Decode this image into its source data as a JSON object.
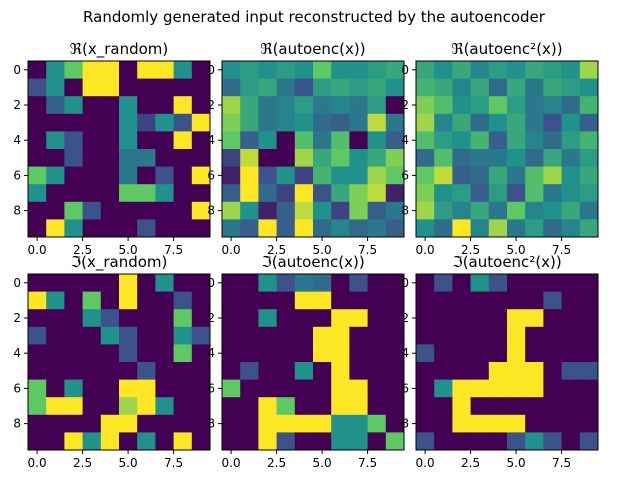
{
  "figure": {
    "suptitle": "Randomly generated input reconstructed by the autoencoder"
  },
  "chart_data": [
    {
      "type": "heatmap",
      "title": "ℜ(x_random)",
      "xlabel": "",
      "ylabel": "",
      "xticks": [
        "0.0",
        "2.5",
        "5.0",
        "7.5"
      ],
      "yticks": [
        "0",
        "2",
        "4",
        "6",
        "8"
      ],
      "colormap": "viridis",
      "values": [
        [
          0.0,
          0.5,
          0.75,
          1.0,
          1.0,
          0.0,
          1.0,
          1.0,
          0.5,
          0.0
        ],
        [
          0.25,
          0.5,
          0.0,
          1.0,
          1.0,
          0.0,
          0.0,
          0.0,
          0.0,
          0.0
        ],
        [
          0.0,
          0.3,
          0.5,
          0.0,
          0.0,
          0.5,
          0.0,
          0.0,
          1.0,
          0.0
        ],
        [
          0.0,
          0.0,
          0.0,
          0.0,
          0.0,
          0.5,
          0.2,
          0.5,
          0.25,
          1.0
        ],
        [
          0.0,
          0.5,
          0.25,
          0.0,
          0.0,
          0.5,
          0.0,
          0.0,
          1.0,
          0.0
        ],
        [
          0.0,
          0.0,
          0.25,
          0.0,
          0.0,
          0.4,
          0.4,
          0.0,
          0.0,
          0.0
        ],
        [
          0.75,
          0.5,
          0.0,
          0.0,
          0.0,
          0.4,
          0.0,
          0.25,
          0.0,
          1.0
        ],
        [
          0.5,
          0.0,
          0.0,
          0.0,
          0.0,
          0.75,
          0.75,
          0.5,
          0.0,
          0.0
        ],
        [
          0.0,
          0.0,
          0.75,
          0.25,
          0.0,
          0.0,
          0.0,
          0.0,
          0.0,
          1.0
        ],
        [
          0.0,
          1.0,
          0.5,
          0.0,
          0.0,
          0.0,
          0.25,
          0.0,
          0.0,
          0.0
        ]
      ]
    },
    {
      "type": "heatmap",
      "title": "ℜ(autoenc(x))",
      "xlabel": "",
      "ylabel": "",
      "xticks": [
        "0.0",
        "2.5",
        "5.0",
        "7.5"
      ],
      "yticks": [
        "0",
        "2",
        "4",
        "6",
        "8"
      ],
      "colormap": "viridis",
      "values": [
        [
          0.5,
          0.55,
          0.5,
          0.55,
          0.5,
          0.75,
          0.5,
          0.5,
          0.55,
          0.6
        ],
        [
          0.35,
          0.55,
          0.6,
          0.4,
          0.25,
          0.55,
          0.6,
          0.55,
          0.6,
          0.5
        ],
        [
          0.85,
          0.6,
          0.4,
          0.45,
          0.55,
          0.4,
          0.45,
          0.4,
          0.55,
          0.0
        ],
        [
          0.8,
          0.6,
          0.4,
          0.45,
          0.5,
          0.35,
          0.3,
          0.4,
          0.9,
          0.4
        ],
        [
          0.75,
          0.3,
          0.5,
          0.0,
          0.7,
          0.4,
          0.7,
          0.0,
          0.5,
          0.3
        ],
        [
          0.2,
          0.9,
          0.0,
          0.0,
          0.85,
          0.6,
          0.75,
          0.5,
          0.6,
          0.8
        ],
        [
          0.1,
          1.0,
          0.25,
          0.5,
          0.2,
          0.65,
          0.5,
          0.5,
          0.85,
          0.75
        ],
        [
          0.3,
          1.0,
          0.35,
          0.2,
          1.0,
          0.25,
          0.6,
          0.8,
          0.9,
          0.1
        ],
        [
          0.85,
          0.5,
          0.1,
          0.3,
          0.9,
          0.5,
          0.2,
          0.8,
          0.3,
          0.4
        ],
        [
          0.4,
          0.3,
          1.0,
          0.3,
          1.0,
          0.35,
          0.45,
          0.35,
          0.4,
          0.3
        ]
      ]
    },
    {
      "type": "heatmap",
      "title": "ℜ(autoenc²(x))",
      "xlabel": "",
      "ylabel": "",
      "xticks": [
        "0.0",
        "2.5",
        "5.0",
        "7.5"
      ],
      "yticks": [
        "0",
        "2",
        "4",
        "6",
        "8"
      ],
      "colormap": "viridis",
      "values": [
        [
          0.6,
          0.5,
          0.6,
          0.45,
          0.55,
          0.5,
          0.6,
          0.55,
          0.5,
          0.85
        ],
        [
          0.65,
          0.6,
          0.45,
          0.6,
          0.35,
          0.6,
          0.4,
          0.6,
          0.55,
          0.5
        ],
        [
          0.8,
          0.7,
          0.5,
          0.55,
          0.75,
          0.55,
          0.4,
          0.45,
          0.35,
          0.65
        ],
        [
          0.85,
          0.45,
          0.6,
          0.35,
          0.5,
          0.6,
          0.4,
          0.25,
          0.5,
          0.3
        ],
        [
          0.7,
          0.55,
          0.5,
          0.65,
          0.3,
          0.6,
          0.45,
          0.35,
          0.55,
          0.65
        ],
        [
          0.35,
          0.7,
          0.35,
          0.4,
          0.4,
          0.5,
          0.35,
          0.6,
          0.4,
          0.55
        ],
        [
          0.75,
          0.9,
          0.3,
          0.35,
          0.6,
          0.4,
          0.7,
          0.85,
          0.5,
          0.6
        ],
        [
          0.8,
          0.5,
          0.55,
          0.3,
          0.55,
          0.25,
          0.7,
          0.4,
          0.5,
          0.55
        ],
        [
          0.85,
          0.55,
          0.45,
          0.6,
          0.4,
          0.75,
          0.45,
          0.5,
          0.6,
          0.4
        ],
        [
          0.5,
          0.35,
          1.0,
          0.45,
          0.85,
          0.4,
          0.55,
          0.35,
          0.45,
          0.6
        ]
      ]
    },
    {
      "type": "heatmap",
      "title": "ℑ(x_random)",
      "xlabel": "",
      "ylabel": "",
      "xticks": [
        "0.0",
        "2.5",
        "5.0",
        "7.5"
      ],
      "yticks": [
        "0",
        "2",
        "4",
        "6",
        "8"
      ],
      "colormap": "viridis",
      "values": [
        [
          0.0,
          0.0,
          0.0,
          0.0,
          0.0,
          1.0,
          0.0,
          0.5,
          0.0,
          0.0
        ],
        [
          1.0,
          0.5,
          0.0,
          0.75,
          0.0,
          1.0,
          0.0,
          0.0,
          0.25,
          0.0
        ],
        [
          0.0,
          0.0,
          0.0,
          0.5,
          0.25,
          0.0,
          0.0,
          0.0,
          0.75,
          0.0
        ],
        [
          0.25,
          0.0,
          0.0,
          0.0,
          0.5,
          0.25,
          0.0,
          0.0,
          0.5,
          0.25
        ],
        [
          0.0,
          0.0,
          0.0,
          0.0,
          0.0,
          0.25,
          0.0,
          0.0,
          0.75,
          0.0
        ],
        [
          0.0,
          0.0,
          0.0,
          0.0,
          0.0,
          0.0,
          0.25,
          0.0,
          0.0,
          0.0
        ],
        [
          0.75,
          0.0,
          0.5,
          0.0,
          0.0,
          1.0,
          1.0,
          0.0,
          0.0,
          0.0
        ],
        [
          0.75,
          1.0,
          1.0,
          0.0,
          0.0,
          0.85,
          1.0,
          0.5,
          0.0,
          0.0
        ],
        [
          0.0,
          0.0,
          0.0,
          0.0,
          1.0,
          1.0,
          0.0,
          0.0,
          0.0,
          0.0
        ],
        [
          0.0,
          0.0,
          1.0,
          0.5,
          1.0,
          0.0,
          0.5,
          0.0,
          1.0,
          0.0
        ]
      ]
    },
    {
      "type": "heatmap",
      "title": "ℑ(autoenc(x))",
      "xlabel": "",
      "ylabel": "",
      "xticks": [
        "0.0",
        "2.5",
        "5.0",
        "7.5"
      ],
      "yticks": [
        "0",
        "2",
        "4",
        "6",
        "8"
      ],
      "colormap": "viridis",
      "values": [
        [
          0.0,
          0.0,
          0.5,
          0.25,
          0.4,
          0.35,
          0.0,
          0.25,
          0.0,
          0.0
        ],
        [
          0.0,
          0.0,
          0.0,
          0.0,
          1.0,
          1.0,
          0.0,
          0.0,
          0.0,
          0.0
        ],
        [
          0.0,
          0.0,
          0.5,
          0.0,
          0.0,
          0.0,
          1.0,
          1.0,
          0.0,
          0.0
        ],
        [
          0.0,
          0.0,
          0.0,
          0.0,
          0.0,
          1.0,
          1.0,
          0.0,
          0.0,
          0.0
        ],
        [
          0.0,
          0.0,
          0.0,
          0.0,
          0.0,
          1.0,
          1.0,
          0.0,
          0.0,
          0.0
        ],
        [
          0.0,
          0.25,
          0.0,
          0.0,
          0.5,
          0.0,
          1.0,
          0.0,
          0.0,
          0.0
        ],
        [
          0.75,
          0.0,
          0.0,
          0.0,
          0.0,
          0.0,
          1.0,
          1.0,
          0.0,
          0.0
        ],
        [
          0.0,
          0.0,
          1.0,
          0.75,
          0.0,
          0.0,
          1.0,
          1.0,
          0.0,
          0.0
        ],
        [
          0.0,
          0.0,
          1.0,
          1.0,
          1.0,
          1.0,
          0.5,
          0.5,
          0.75,
          0.0
        ],
        [
          0.0,
          0.0,
          1.0,
          0.25,
          0.0,
          0.0,
          0.5,
          0.5,
          0.0,
          0.75
        ]
      ]
    },
    {
      "type": "heatmap",
      "title": "ℑ(autoenc²(x))",
      "xlabel": "",
      "ylabel": "",
      "xticks": [
        "0.0",
        "2.5",
        "5.0",
        "7.5"
      ],
      "yticks": [
        "0",
        "2",
        "4",
        "6",
        "8"
      ],
      "colormap": "viridis",
      "values": [
        [
          0.0,
          0.25,
          0.0,
          0.5,
          0.25,
          0.0,
          0.0,
          0.0,
          0.0,
          0.0
        ],
        [
          0.0,
          0.0,
          0.0,
          0.0,
          0.0,
          0.0,
          0.0,
          0.25,
          0.0,
          0.0
        ],
        [
          0.0,
          0.0,
          0.0,
          0.0,
          0.0,
          1.0,
          1.0,
          0.0,
          0.0,
          0.0
        ],
        [
          0.0,
          0.0,
          0.0,
          0.0,
          0.0,
          1.0,
          0.0,
          0.0,
          0.0,
          0.0
        ],
        [
          0.25,
          0.0,
          0.0,
          0.0,
          0.0,
          1.0,
          0.0,
          0.0,
          0.0,
          0.0
        ],
        [
          0.0,
          0.0,
          0.0,
          0.0,
          1.0,
          1.0,
          1.0,
          0.0,
          0.25,
          0.25
        ],
        [
          0.0,
          0.5,
          1.0,
          1.0,
          1.0,
          1.0,
          1.0,
          0.0,
          0.0,
          0.0
        ],
        [
          0.0,
          0.0,
          1.0,
          0.0,
          0.0,
          0.0,
          0.0,
          0.0,
          0.0,
          0.0
        ],
        [
          0.0,
          0.0,
          1.0,
          1.0,
          1.0,
          1.0,
          0.0,
          0.0,
          0.0,
          0.0
        ],
        [
          0.25,
          0.0,
          0.0,
          0.0,
          0.0,
          0.25,
          0.5,
          0.25,
          0.0,
          0.25
        ]
      ]
    }
  ]
}
